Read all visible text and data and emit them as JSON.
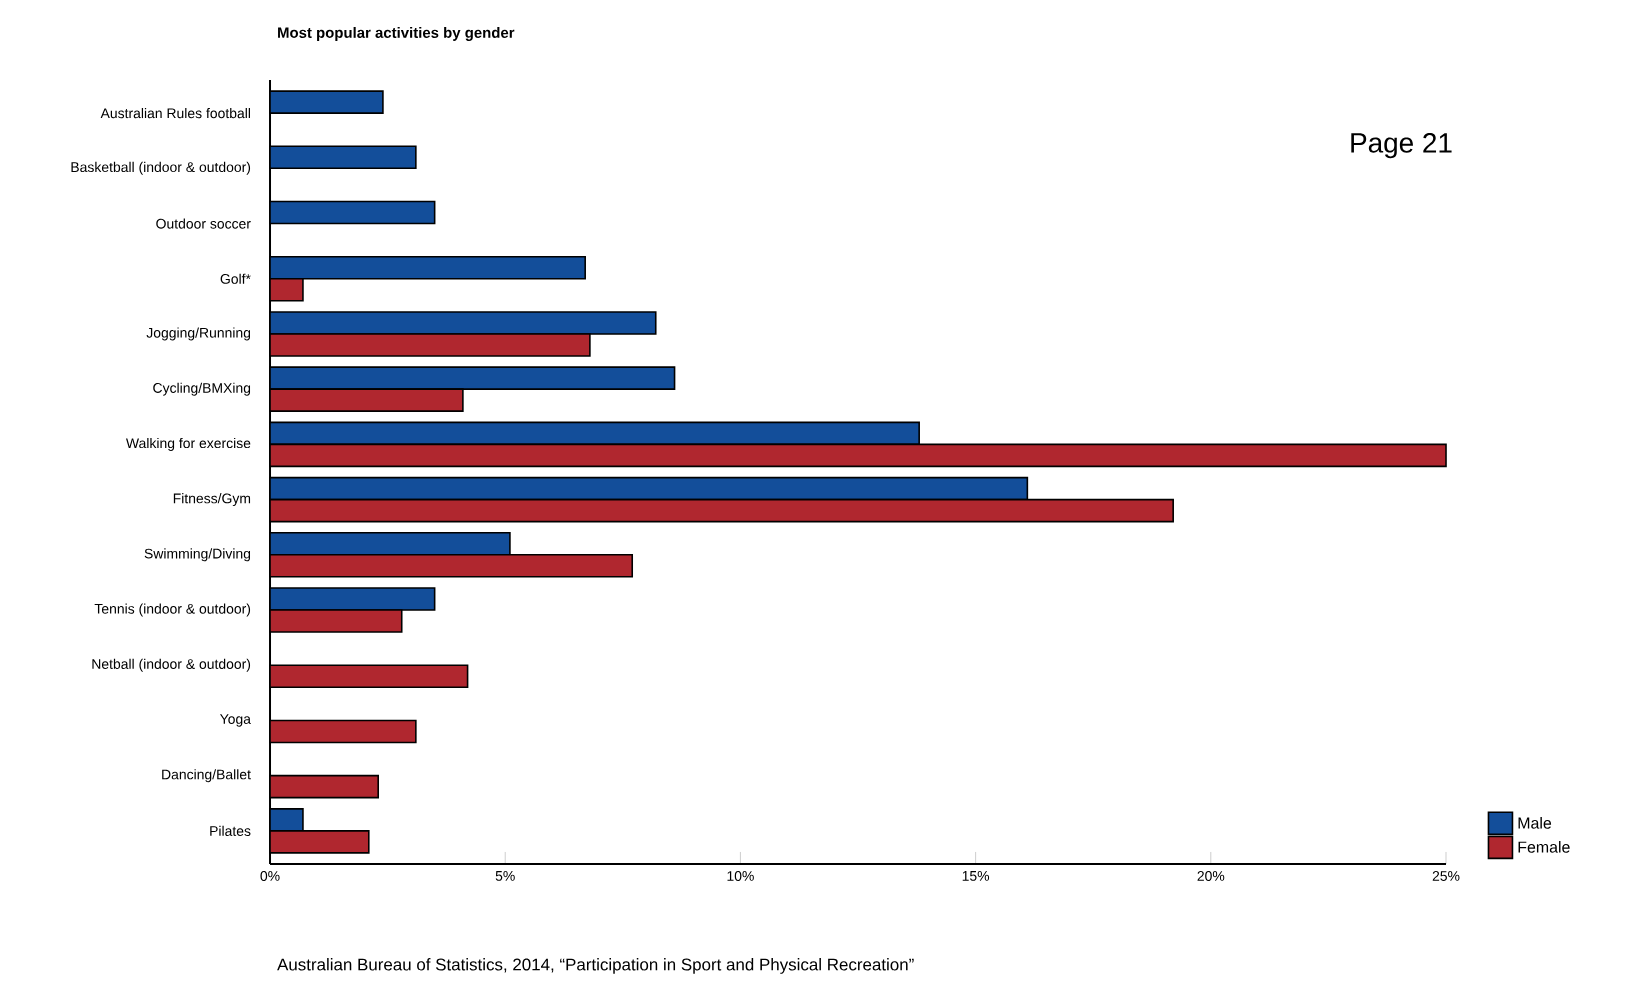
{
  "chart_data": {
    "type": "bar",
    "orientation": "horizontal",
    "title": "Most popular activities by gender",
    "annotations": [
      "Page 21",
      "Australian Bureau of Statistics, 2014, “Participation in Sport and Physical Recreation”"
    ],
    "categories": [
      "Australian Rules football",
      "Basketball (indoor & outdoor)",
      "Outdoor soccer",
      "Golf*",
      "Jogging/Running",
      "Cycling/BMXing",
      "Walking for exercise",
      "Fitness/Gym",
      "Swimming/Diving",
      "Tennis (indoor & outdoor)",
      "Netball (indoor & outdoor)",
      "Yoga",
      "Dancing/Ballet",
      "Pilates"
    ],
    "series": [
      {
        "name": "Male",
        "color": "#134e9a",
        "values": [
          2.4,
          3.1,
          3.5,
          6.7,
          8.2,
          8.6,
          13.8,
          16.1,
          5.1,
          3.5,
          null,
          null,
          null,
          0.7
        ]
      },
      {
        "name": "Female",
        "color": "#b0272f",
        "values": [
          null,
          null,
          null,
          0.7,
          6.8,
          4.1,
          25.0,
          19.2,
          7.7,
          2.8,
          4.2,
          3.1,
          2.3,
          2.1
        ]
      }
    ],
    "xlim": [
      0,
      25
    ],
    "xticks": [
      {
        "value": 0,
        "label": "0%"
      },
      {
        "value": 5,
        "label": "5%"
      },
      {
        "value": 10,
        "label": "10%"
      },
      {
        "value": 15,
        "label": "15%"
      },
      {
        "value": 20,
        "label": "20%"
      },
      {
        "value": 25,
        "label": "25%"
      }
    ],
    "grid": false,
    "legend": "bottom right"
  }
}
